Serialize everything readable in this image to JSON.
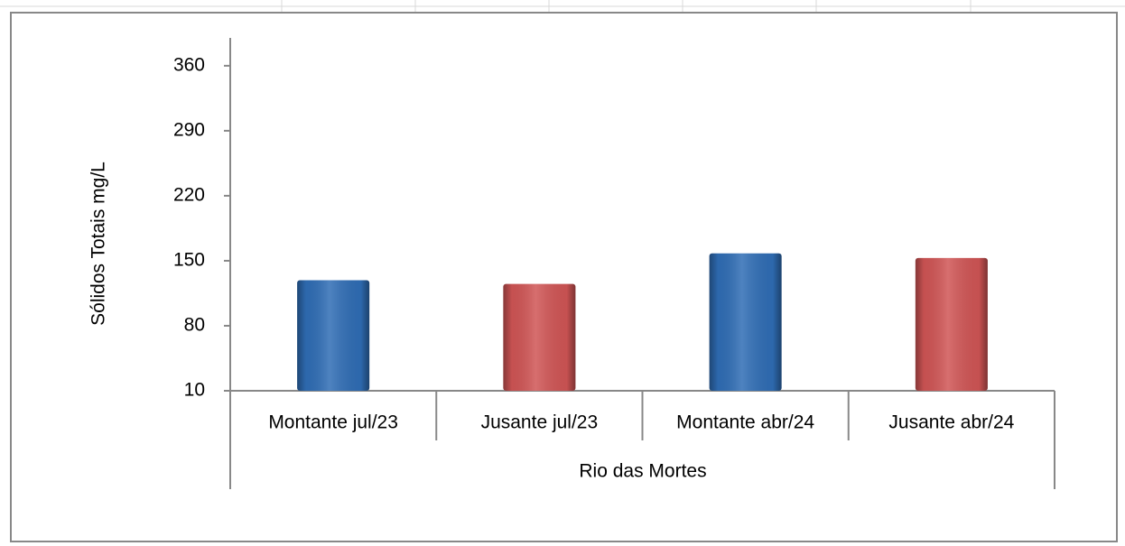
{
  "chart_data": {
    "type": "bar",
    "y_label": "Sólidos Totais mg/L",
    "group_label": "Rio das Mortes",
    "categories": [
      "Montante jul/23",
      "Jusante jul/23",
      "Montante abr/24",
      "Jusante abr/24"
    ],
    "values": [
      129,
      125,
      158,
      153
    ],
    "colors": [
      "#2f6db5",
      "#d05555",
      "#2f6db5",
      "#d05555"
    ],
    "ylim": [
      10,
      390
    ],
    "yticks": [
      10,
      80,
      150,
      220,
      290,
      360
    ],
    "grid": false
  }
}
